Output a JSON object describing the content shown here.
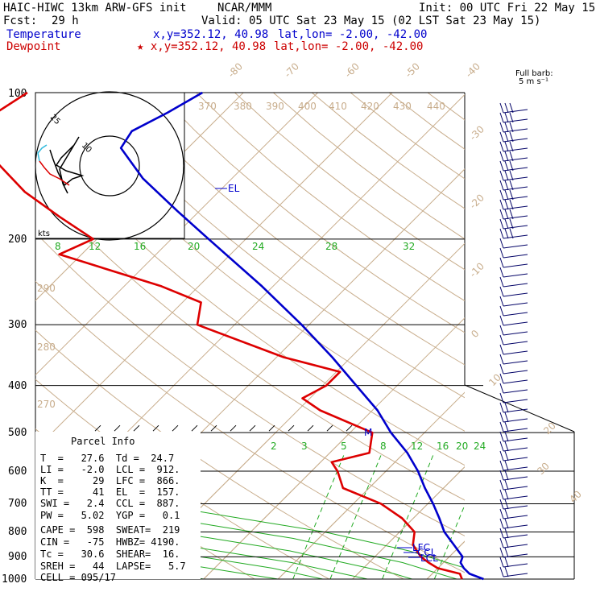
{
  "header": {
    "model": "HAIC-HIWC 13km ARW-GFS init",
    "org": "NCAR/MMM",
    "init": "Init: 00 UTC Fri 22 May 15",
    "fcst_label": "Fcst:",
    "fcst_value": "29 h",
    "valid": "Valid: 05 UTC Sat 23 May 15 (02 LST Sat 23 May 15)",
    "temperature_label": "Temperature",
    "temperature_loc": "x,y=352.12, 40.98",
    "temperature_latlon": "lat,lon= -2.00, -42.00",
    "dewpoint_label": "Dewpoint",
    "dewpoint_loc": "★ x,y=352.12, 40.98",
    "dewpoint_latlon": "lat,lon= -2.00, -42.00"
  },
  "colors": {
    "temperature": "#0000cc",
    "dewpoint": "#dd0000",
    "isotherm": "#c8ad8c",
    "mixing_ratio": "#22aa22",
    "barb": "#000066"
  },
  "barb_label": {
    "line1": "Full barb:",
    "line2": "5 m s⁻¹"
  },
  "hodograph": {
    "units": "kts",
    "ring_labels": [
      "25",
      "10"
    ]
  },
  "parcel": {
    "title": "Parcel Info",
    "rows": [
      "T  =   27.6  Td =  24.7",
      "LI =   -2.0  LCL =  912.",
      "K  =     29  LFC =  866.",
      "TT =     41  EL  =  157.",
      "SWI =   2.4  CCL =  887.",
      "PW =   5.02  YGP =   0.1",
      "CAPE =  598  SWEAT=  219",
      "CIN =   -75  HWBZ= 4190.",
      "Tc =   30.6  SHEAR=  16.",
      "SREH =   44  LAPSE=   5.7",
      "CELL = 095/17"
    ]
  },
  "chart_data": {
    "type": "line",
    "diagram": "skew-T log-p",
    "pressure_levels": [
      "100",
      "200",
      "300",
      "400",
      "500",
      "600",
      "700",
      "800",
      "900",
      "1000"
    ],
    "temp_axis_labels": [
      "-80",
      "-70",
      "-60",
      "-50",
      "-40",
      "-30",
      "-20",
      "-10",
      "0",
      "10",
      "20",
      "30",
      "40"
    ],
    "potential_temp_labels": [
      "370",
      "380",
      "390",
      "400",
      "410",
      "420",
      "430",
      "440"
    ],
    "dry_adiabat_labels": [
      "290",
      "280",
      "270"
    ],
    "mixing_ratio_labels_top": [
      "8",
      "12",
      "16",
      "20",
      "24",
      "28",
      "32"
    ],
    "mixing_ratio_labels_mid": [
      "2",
      "3",
      "5",
      "8",
      "12",
      "16",
      "20",
      "24"
    ],
    "markers": {
      "el": "EL",
      "lfc": "LFC",
      "lcl": "LCL",
      "ccl": "CCL",
      "m": "M"
    },
    "series": [
      {
        "name": "Temperature",
        "points": [
          [
            1000,
            27.6
          ],
          [
            975,
            25.0
          ],
          [
            950,
            23.5
          ],
          [
            925,
            22.3
          ],
          [
            900,
            21.8
          ],
          [
            850,
            19.0
          ],
          [
            800,
            16.0
          ],
          [
            750,
            13.5
          ],
          [
            700,
            10.7
          ],
          [
            650,
            7.5
          ],
          [
            600,
            4.3
          ],
          [
            550,
            0.4
          ],
          [
            500,
            -4.5
          ],
          [
            450,
            -9.3
          ],
          [
            400,
            -15.5
          ],
          [
            350,
            -22.5
          ],
          [
            300,
            -31.0
          ],
          [
            250,
            -41.5
          ],
          [
            200,
            -55.0
          ],
          [
            175,
            -63.0
          ],
          [
            150,
            -72.0
          ],
          [
            130,
            -79.0
          ],
          [
            120,
            -79.8
          ],
          [
            110,
            -77.5
          ],
          [
            100,
            -75.5
          ]
        ]
      },
      {
        "name": "Dewpoint",
        "points": [
          [
            1000,
            24.7
          ],
          [
            975,
            23.7
          ],
          [
            950,
            20.0
          ],
          [
            925,
            18.0
          ],
          [
            900,
            16.2
          ],
          [
            850,
            13.5
          ],
          [
            800,
            12.0
          ],
          [
            750,
            8.5
          ],
          [
            700,
            3.7
          ],
          [
            650,
            -3.5
          ],
          [
            600,
            -6.5
          ],
          [
            575,
            -8.5
          ],
          [
            550,
            -4.7
          ],
          [
            500,
            -7.0
          ],
          [
            450,
            -17.0
          ],
          [
            425,
            -21.0
          ],
          [
            400,
            -19.5
          ],
          [
            375,
            -19.5
          ],
          [
            350,
            -29.0
          ],
          [
            300,
            -45.0
          ],
          [
            270,
            -47.5
          ],
          [
            250,
            -55.0
          ],
          [
            215,
            -73.0
          ],
          [
            200,
            -70.5
          ],
          [
            180,
            -78.0
          ],
          [
            160,
            -86.0
          ],
          [
            130,
            -97.5
          ],
          [
            110,
            -100.5
          ],
          [
            100,
            -99.0
          ]
        ]
      }
    ],
    "temperature_range_at_1000hPa": [
      -50,
      40
    ],
    "pressure_range": [
      1000,
      100
    ]
  }
}
